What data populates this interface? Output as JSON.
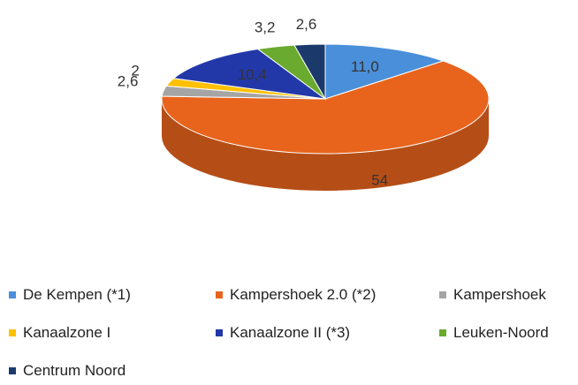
{
  "chart_data": {
    "type": "pie3d",
    "categories": [
      "De Kempen (*1)",
      "Kampershoek 2.0 (*2)",
      "Kampershoek",
      "Kanaalzone I",
      "Kanaalzone II (*3)",
      "Leuken-Noord",
      "Centrum Noord"
    ],
    "values": [
      11.0,
      54,
      2.6,
      2,
      10.4,
      3.2,
      2.6
    ],
    "value_labels": [
      "11,0",
      "54",
      "2,6",
      "2",
      "10,4",
      "3,2",
      "2,6"
    ],
    "colors": [
      "#4a8fd9",
      "#e8641c",
      "#a5a5a5",
      "#ffc000",
      "#2338a8",
      "#6aaa2e",
      "#1b3a6b"
    ],
    "legend": "bottom"
  }
}
